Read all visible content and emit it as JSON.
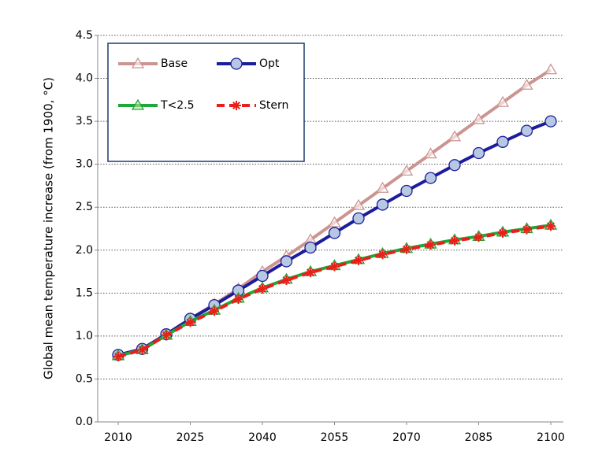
{
  "chart_data": {
    "type": "line",
    "y_label": "Global mean temperature increase (from 1900, °C)",
    "x": [
      2010,
      2015,
      2020,
      2025,
      2030,
      2035,
      2040,
      2045,
      2050,
      2055,
      2060,
      2065,
      2070,
      2075,
      2080,
      2085,
      2090,
      2095,
      2100
    ],
    "xlim": [
      2010,
      2100
    ],
    "xticks": [
      2010,
      2025,
      2040,
      2055,
      2070,
      2085,
      2100
    ],
    "ylim": [
      0,
      4.5
    ],
    "yticks": [
      {
        "value": 0,
        "label": "0.0"
      },
      {
        "value": 0.5,
        "label": "0.5"
      },
      {
        "value": 1,
        "label": "1.0"
      },
      {
        "value": 1.5,
        "label": "1.5"
      },
      {
        "value": 2,
        "label": "2.0"
      },
      {
        "value": 2.5,
        "label": "2.5"
      },
      {
        "value": 3,
        "label": "3.0"
      },
      {
        "value": 3.5,
        "label": "3.5"
      },
      {
        "value": 4,
        "label": "4.0"
      },
      {
        "value": 4.5,
        "label": "4.5"
      }
    ],
    "grid": true,
    "legend": "upper left",
    "series": [
      {
        "name": "Base",
        "color": "#cc9490",
        "marker": "triangle",
        "values": [
          0.78,
          0.85,
          1.02,
          1.2,
          1.37,
          1.55,
          1.75,
          1.93,
          2.12,
          2.32,
          2.52,
          2.72,
          2.92,
          3.12,
          3.32,
          3.52,
          3.72,
          3.92,
          4.1
        ]
      },
      {
        "name": "Opt",
        "color": "#1c1c9c",
        "marker": "circle",
        "values": [
          0.78,
          0.85,
          1.02,
          1.2,
          1.36,
          1.53,
          1.7,
          1.87,
          2.03,
          2.2,
          2.37,
          2.53,
          2.69,
          2.84,
          2.99,
          3.13,
          3.26,
          3.39,
          3.5
        ]
      },
      {
        "name": "T<2.5",
        "color": "#1fa83a",
        "marker": "triangle",
        "values": [
          0.77,
          0.84,
          1.01,
          1.17,
          1.3,
          1.44,
          1.56,
          1.66,
          1.75,
          1.82,
          1.89,
          1.96,
          2.02,
          2.07,
          2.12,
          2.16,
          2.21,
          2.25,
          2.29
        ]
      },
      {
        "name": "Stern",
        "color": "#e8201a",
        "marker": "star",
        "dashed": true,
        "values": [
          0.76,
          0.84,
          1.01,
          1.16,
          1.29,
          1.43,
          1.55,
          1.65,
          1.74,
          1.81,
          1.88,
          1.95,
          2.01,
          2.06,
          2.11,
          2.15,
          2.2,
          2.24,
          2.28
        ]
      }
    ]
  }
}
